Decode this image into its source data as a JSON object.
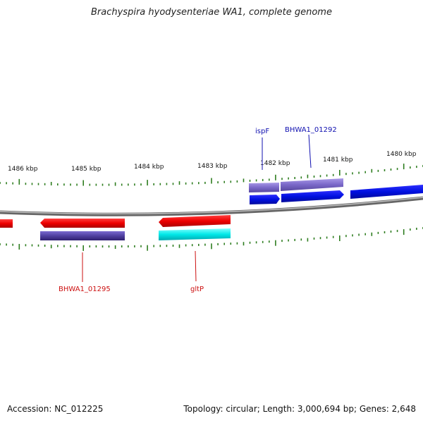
{
  "title": "Brachyspira hyodysenteriae WA1, complete genome",
  "accession_text": "Accession: NC_012225",
  "summary_text": "Topology: circular; Length: 3,000,694 bp; Genes: 2,648",
  "colors": {
    "backbone": "#888888",
    "tick": "#2e7d1f",
    "forward_label": "#1010b0",
    "reverse_label": "#cc1010",
    "gene_forward": "#0010e0",
    "gene_reverse": "#ee0000",
    "cds_purple": "#5040a0",
    "trna_cyan": "#00e0e0"
  },
  "scale_labels": [
    "1486 kbp",
    "1485 kbp",
    "1484 kbp",
    "1483 kbp",
    "1482 kbp",
    "1481 kbp",
    "1480 kbp"
  ],
  "gene_labels": {
    "ispF": "ispF",
    "bhwa1_01292": "BHWA1_01292",
    "bhwa1_01295": "BHWA1_01295",
    "gltP": "gltP"
  }
}
